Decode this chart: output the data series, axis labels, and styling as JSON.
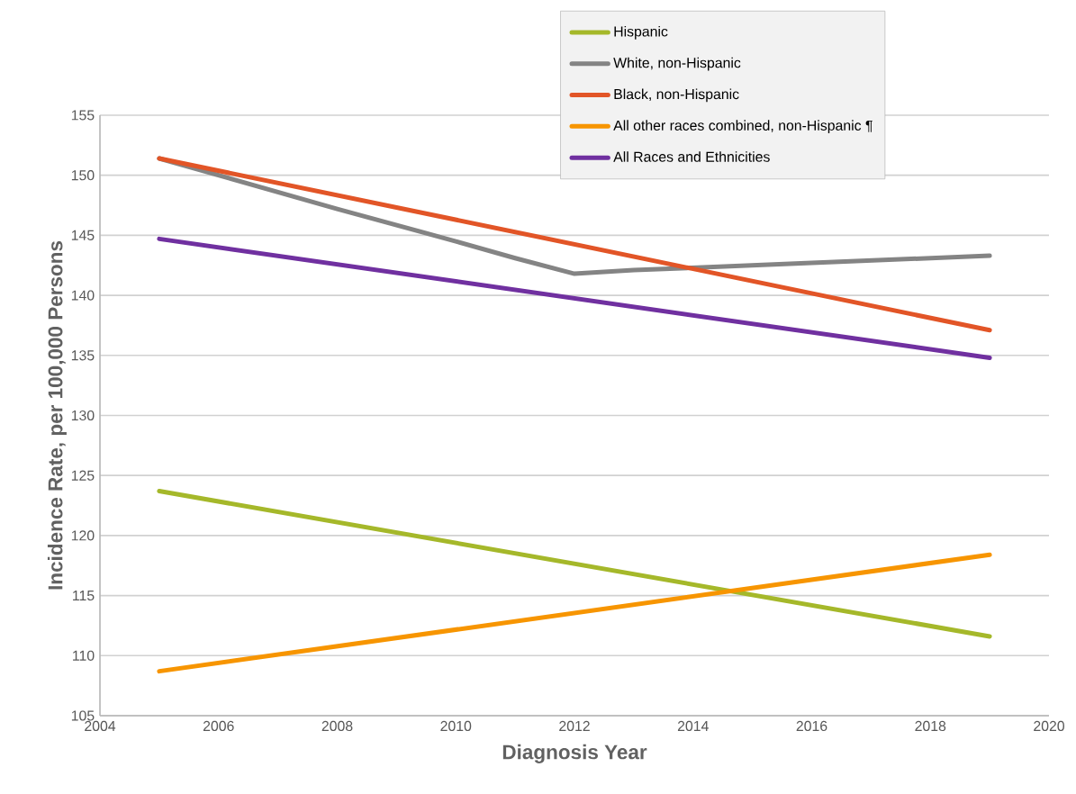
{
  "chart_data": {
    "type": "line",
    "xlabel": "Diagnosis Year",
    "ylabel": "Incidence Rate, per 100,000  Persons",
    "x": [
      2005,
      2019
    ],
    "series": [
      {
        "name": "Hispanic",
        "color": "#a5b82a",
        "values": [
          123.7,
          111.6
        ]
      },
      {
        "name": "White, non-Hispanic",
        "color": "#848484",
        "x": [
          2005,
          2008,
          2010,
          2011,
          2012,
          2013,
          2016,
          2019
        ],
        "values": [
          151.4,
          147.2,
          144.5,
          143.1,
          141.8,
          142.1,
          142.7,
          143.3
        ]
      },
      {
        "name": "Black, non-Hispanic",
        "color": "#e25527",
        "values": [
          151.4,
          137.1
        ]
      },
      {
        "name": "All other races combined, non-Hispanic ¶",
        "color": "#f79500",
        "values": [
          108.7,
          118.4
        ]
      },
      {
        "name": "All Races and Ethnicities",
        "color": "#7030a0",
        "values": [
          144.7,
          134.8
        ]
      }
    ],
    "xlim": [
      2004,
      2020
    ],
    "xticks": [
      2004,
      2006,
      2008,
      2010,
      2012,
      2014,
      2016,
      2018,
      2020
    ],
    "ylim": [
      105,
      155
    ],
    "yticks": [
      105,
      110,
      115,
      120,
      125,
      130,
      135,
      140,
      145,
      150,
      155
    ],
    "grid": "y",
    "legend": "top right",
    "line_style": "solid"
  }
}
